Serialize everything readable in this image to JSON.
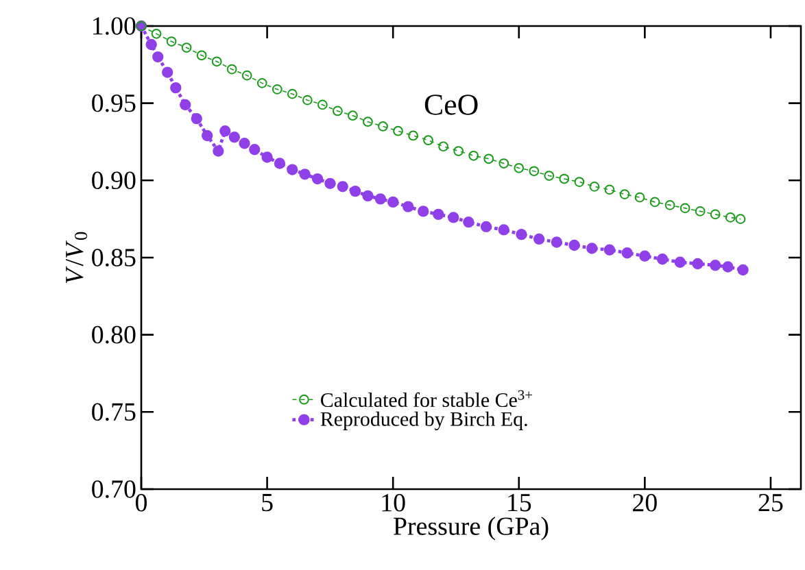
{
  "chart_data": {
    "type": "line",
    "title": "CeO",
    "xlabel": "Pressure (GPa)",
    "ylabel": "*V*/*V*$_{0}$",
    "xlim": [
      0,
      26.2
    ],
    "ylim": [
      0.7,
      1.0
    ],
    "xticks": [
      0,
      5,
      10,
      15,
      20,
      25
    ],
    "yticks": [
      {
        "value": 0.7,
        "label": "0.70"
      },
      0.75,
      {
        "value": 0.8,
        "label": "0.80"
      },
      0.85,
      {
        "value": 0.9,
        "label": "0.90"
      },
      0.95,
      {
        "value": 1.0,
        "label": "1.00"
      }
    ],
    "grid": false,
    "legend": "bottom",
    "marker": "circle",
    "series": [
      {
        "name": "Calculated for stable Ce$^{3+}$",
        "color": "#1a9a1a",
        "line_style": "dashed",
        "x": [
          0,
          0.6,
          1.2,
          1.8,
          2.4,
          3.0,
          3.6,
          4.2,
          4.8,
          5.4,
          6.0,
          6.6,
          7.2,
          7.8,
          8.4,
          9.0,
          9.6,
          10.2,
          10.8,
          11.4,
          12.0,
          12.6,
          13.2,
          13.8,
          14.4,
          15.0,
          15.6,
          16.2,
          16.8,
          17.4,
          18.0,
          18.6,
          19.2,
          19.8,
          20.4,
          21.0,
          21.6,
          22.2,
          22.8,
          23.4,
          23.8
        ],
        "values": [
          1.0,
          0.995,
          0.99,
          0.986,
          0.981,
          0.977,
          0.972,
          0.968,
          0.963,
          0.959,
          0.956,
          0.952,
          0.949,
          0.945,
          0.942,
          0.938,
          0.935,
          0.932,
          0.929,
          0.926,
          0.922,
          0.919,
          0.916,
          0.914,
          0.911,
          0.908,
          0.906,
          0.903,
          0.901,
          0.899,
          0.896,
          0.894,
          0.891,
          0.889,
          0.886,
          0.884,
          0.882,
          0.88,
          0.878,
          0.876,
          0.875
        ]
      },
      {
        "name": "Reproduced by Birch Eq.",
        "color": "#9040e8",
        "line_style": "dotted",
        "x": [
          0,
          0.4,
          0.66,
          1.04,
          1.37,
          1.75,
          2.2,
          2.62,
          3.06,
          3.33,
          3.7,
          4.1,
          4.5,
          5.0,
          5.5,
          6.0,
          6.5,
          7.0,
          7.5,
          8.0,
          8.5,
          9.0,
          9.5,
          10.0,
          10.6,
          11.2,
          11.8,
          12.4,
          13.0,
          13.7,
          14.4,
          15.1,
          15.8,
          16.5,
          17.2,
          17.9,
          18.6,
          19.3,
          20.0,
          20.7,
          21.4,
          22.1,
          22.8,
          23.3,
          23.9
        ],
        "values": [
          1.0,
          0.988,
          0.98,
          0.97,
          0.96,
          0.949,
          0.94,
          0.929,
          0.919,
          0.932,
          0.928,
          0.924,
          0.92,
          0.915,
          0.911,
          0.907,
          0.904,
          0.901,
          0.898,
          0.896,
          0.893,
          0.89,
          0.888,
          0.886,
          0.883,
          0.88,
          0.878,
          0.876,
          0.873,
          0.87,
          0.868,
          0.865,
          0.862,
          0.86,
          0.858,
          0.856,
          0.855,
          0.853,
          0.851,
          0.849,
          0.847,
          0.846,
          0.845,
          0.844,
          0.842
        ]
      }
    ]
  }
}
